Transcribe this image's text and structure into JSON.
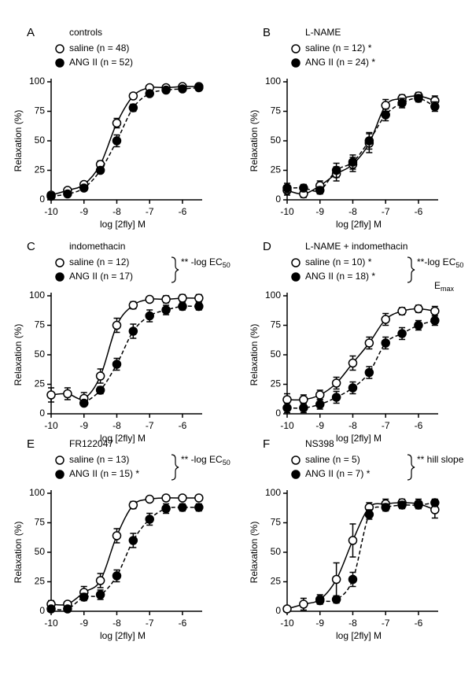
{
  "chart_data": [
    {
      "type": "line",
      "label": "A",
      "title": "controls",
      "xlabel": "log [2fly] M",
      "ylabel": "Relaxation (%)",
      "x": [
        -10,
        -9.5,
        -9,
        -8.5,
        -8,
        -7.5,
        -7,
        -6.5,
        -6,
        -5.5
      ],
      "xlim": [
        -10,
        -5.4
      ],
      "xticks": [
        -10,
        -9,
        -8,
        -7,
        -6
      ],
      "ylim": [
        0,
        100
      ],
      "yticks": [
        0,
        25,
        50,
        75,
        100
      ],
      "series": [
        {
          "name": "saline (n = 48)",
          "color": "#000000",
          "marker": "open",
          "linestyle": "solid",
          "values": [
            4,
            8,
            13,
            30,
            65,
            88,
            95,
            95,
            96,
            96
          ],
          "errors": [
            1,
            1,
            2,
            3,
            4,
            2,
            2,
            2,
            2,
            2
          ]
        },
        {
          "name": "ANG II (n = 52)",
          "color": "#000000",
          "marker": "filled",
          "linestyle": "dashed",
          "values": [
            3,
            5,
            10,
            25,
            50,
            78,
            90,
            93,
            94,
            95
          ],
          "errors": [
            1,
            1,
            2,
            2,
            5,
            3,
            2,
            2,
            2,
            2
          ]
        }
      ],
      "annotations": []
    },
    {
      "type": "line",
      "label": "B",
      "title": "L-NAME",
      "xlabel": "log [2fly] M",
      "ylabel": "Relaxation (%)",
      "x": [
        -10,
        -9.5,
        -9,
        -8.5,
        -8,
        -7.5,
        -7,
        -6.5,
        -6,
        -5.5
      ],
      "xlim": [
        -10,
        -5.4
      ],
      "xticks": [
        -10,
        -9,
        -8,
        -7,
        -6
      ],
      "ylim": [
        0,
        100
      ],
      "yticks": [
        0,
        25,
        50,
        75,
        100
      ],
      "series": [
        {
          "name": "saline (n = 12) *",
          "color": "#000000",
          "marker": "open",
          "linestyle": "solid",
          "values": [
            8,
            5,
            12,
            22,
            30,
            48,
            80,
            86,
            88,
            84
          ],
          "errors": [
            4,
            3,
            4,
            6,
            6,
            8,
            5,
            3,
            3,
            4
          ]
        },
        {
          "name": "ANG II (n = 24) *",
          "color": "#000000",
          "marker": "filled",
          "linestyle": "dashed",
          "values": [
            10,
            10,
            8,
            25,
            32,
            50,
            72,
            82,
            86,
            79
          ],
          "errors": [
            4,
            3,
            3,
            6,
            6,
            7,
            5,
            4,
            3,
            4
          ]
        }
      ],
      "annotations": []
    },
    {
      "type": "line",
      "label": "C",
      "title": "indomethacin",
      "xlabel": "log [2fly] M",
      "ylabel": "Relaxation (%)",
      "x": [
        -10,
        -9.5,
        -9,
        -8.5,
        -8,
        -7.5,
        -7,
        -6.5,
        -6,
        -5.5
      ],
      "xlim": [
        -10,
        -5.4
      ],
      "xticks": [
        -10,
        -9,
        -8,
        -7,
        -6
      ],
      "ylim": [
        0,
        100
      ],
      "yticks": [
        0,
        25,
        50,
        75,
        100
      ],
      "series": [
        {
          "name": "saline (n = 12)",
          "color": "#000000",
          "marker": "open",
          "linestyle": "solid",
          "values": [
            16,
            17,
            13,
            32,
            75,
            92,
            97,
            97,
            98,
            98
          ],
          "errors": [
            6,
            5,
            5,
            6,
            6,
            3,
            2,
            3,
            3,
            3
          ]
        },
        {
          "name": "ANG II (n = 17)",
          "color": "#000000",
          "marker": "filled",
          "linestyle": "dashed",
          "values": [
            null,
            null,
            9,
            20,
            42,
            70,
            83,
            88,
            91,
            91
          ],
          "errors": [
            null,
            null,
            2,
            3,
            5,
            6,
            5,
            4,
            3,
            3
          ]
        }
      ],
      "annotations": [
        {
          "text": "** -log EC",
          "sub": "50"
        }
      ]
    },
    {
      "type": "line",
      "label": "D",
      "title": "L-NAME + indomethacin",
      "xlabel": "log [2fly] M",
      "ylabel": "Relaxation (%)",
      "x": [
        -10,
        -9.5,
        -9,
        -8.5,
        -8,
        -7.5,
        -7,
        -6.5,
        -6,
        -5.5
      ],
      "xlim": [
        -10,
        -5.4
      ],
      "xticks": [
        -10,
        -9,
        -8,
        -7,
        -6
      ],
      "ylim": [
        0,
        100
      ],
      "yticks": [
        0,
        25,
        50,
        75,
        100
      ],
      "series": [
        {
          "name": "saline (n = 10) *",
          "color": "#000000",
          "marker": "open",
          "linestyle": "solid",
          "values": [
            12,
            12,
            16,
            26,
            43,
            60,
            80,
            87,
            89,
            87
          ],
          "errors": [
            5,
            4,
            4,
            5,
            6,
            5,
            5,
            3,
            3,
            4
          ]
        },
        {
          "name": "ANG II (n = 18) *",
          "color": "#000000",
          "marker": "filled",
          "linestyle": "dashed",
          "values": [
            5,
            5,
            8,
            14,
            22,
            35,
            60,
            68,
            75,
            79
          ],
          "errors": [
            4,
            4,
            4,
            5,
            5,
            5,
            5,
            5,
            4,
            4
          ]
        }
      ],
      "annotations": [
        {
          "text": "**-log EC",
          "sub": "50"
        },
        {
          "text": "E",
          "sub": "max"
        }
      ]
    },
    {
      "type": "line",
      "label": "E",
      "title": "FR122047",
      "xlabel": "log [2fly] M",
      "ylabel": "Relaxation (%)",
      "x": [
        -10,
        -9.5,
        -9,
        -8.5,
        -8,
        -7.5,
        -7,
        -6.5,
        -6,
        -5.5
      ],
      "xlim": [
        -10,
        -5.4
      ],
      "xticks": [
        -10,
        -9,
        -8,
        -7,
        -6
      ],
      "ylim": [
        0,
        100
      ],
      "yticks": [
        0,
        25,
        50,
        75,
        100
      ],
      "series": [
        {
          "name": "saline (n = 13)",
          "color": "#000000",
          "marker": "open",
          "linestyle": "solid",
          "values": [
            6,
            6,
            16,
            26,
            64,
            90,
            95,
            96,
            96,
            96
          ],
          "errors": [
            3,
            2,
            5,
            6,
            6,
            3,
            2,
            2,
            2,
            2
          ]
        },
        {
          "name": "ANG II (n = 15) *",
          "color": "#000000",
          "marker": "filled",
          "linestyle": "dashed",
          "values": [
            2,
            2,
            12,
            14,
            30,
            60,
            78,
            87,
            88,
            88
          ],
          "errors": [
            2,
            2,
            3,
            4,
            5,
            6,
            5,
            4,
            3,
            3
          ]
        }
      ],
      "annotations": [
        {
          "text": "** -log EC",
          "sub": "50"
        }
      ]
    },
    {
      "type": "line",
      "label": "F",
      "title": "NS398",
      "xlabel": "log [2fly] M",
      "ylabel": "Relaxation (%)",
      "x": [
        -10,
        -9.5,
        -9,
        -8.5,
        -8,
        -7.5,
        -7,
        -6.5,
        -6,
        -5.5
      ],
      "xlim": [
        -10,
        -5.4
      ],
      "xticks": [
        -10,
        -9,
        -8,
        -7,
        -6
      ],
      "ylim": [
        0,
        100
      ],
      "yticks": [
        0,
        25,
        50,
        75,
        100
      ],
      "series": [
        {
          "name": "saline (n = 5)",
          "color": "#000000",
          "marker": "open",
          "linestyle": "solid",
          "values": [
            2,
            6,
            10,
            27,
            60,
            88,
            91,
            92,
            91,
            86
          ],
          "errors": [
            2,
            5,
            4,
            14,
            14,
            4,
            4,
            3,
            4,
            7
          ]
        },
        {
          "name": "ANG II (n = 7) *",
          "color": "#000000",
          "marker": "filled",
          "linestyle": "dashed",
          "values": [
            null,
            null,
            9,
            10,
            27,
            82,
            88,
            90,
            90,
            92
          ],
          "errors": [
            null,
            null,
            2,
            3,
            6,
            4,
            3,
            3,
            3,
            3
          ]
        }
      ],
      "annotations": [
        {
          "text": "** hill slope"
        }
      ]
    }
  ]
}
